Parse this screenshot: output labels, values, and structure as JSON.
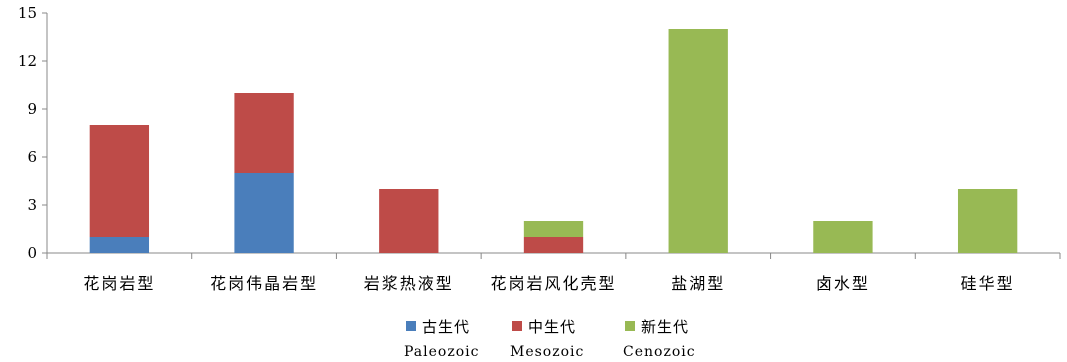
{
  "chart_data": {
    "type": "bar",
    "stacked": true,
    "categories": [
      "花岗岩型",
      "花岗伟晶岩型",
      "岩浆热液型",
      "花岗岩风化壳型",
      "盐湖型",
      "卤水型",
      "硅华型"
    ],
    "series": [
      {
        "name": "古生代",
        "name_en": "Paleozoic",
        "color": "#4a7ebb",
        "values": [
          1,
          5,
          0,
          0,
          0,
          0,
          0
        ]
      },
      {
        "name": "中生代",
        "name_en": "Mesozoic",
        "color": "#be4b48",
        "values": [
          7,
          5,
          4,
          1,
          0,
          0,
          0
        ]
      },
      {
        "name": "新生代",
        "name_en": "Cenozoic",
        "color": "#98b954",
        "values": [
          0,
          0,
          0,
          1,
          14,
          2,
          4
        ]
      }
    ],
    "ylim": [
      0,
      15
    ],
    "yticks": [
      0,
      3,
      6,
      9,
      12,
      15
    ],
    "title": "",
    "xlabel": "",
    "ylabel": "",
    "grid": false,
    "legend_position": "bottom"
  }
}
